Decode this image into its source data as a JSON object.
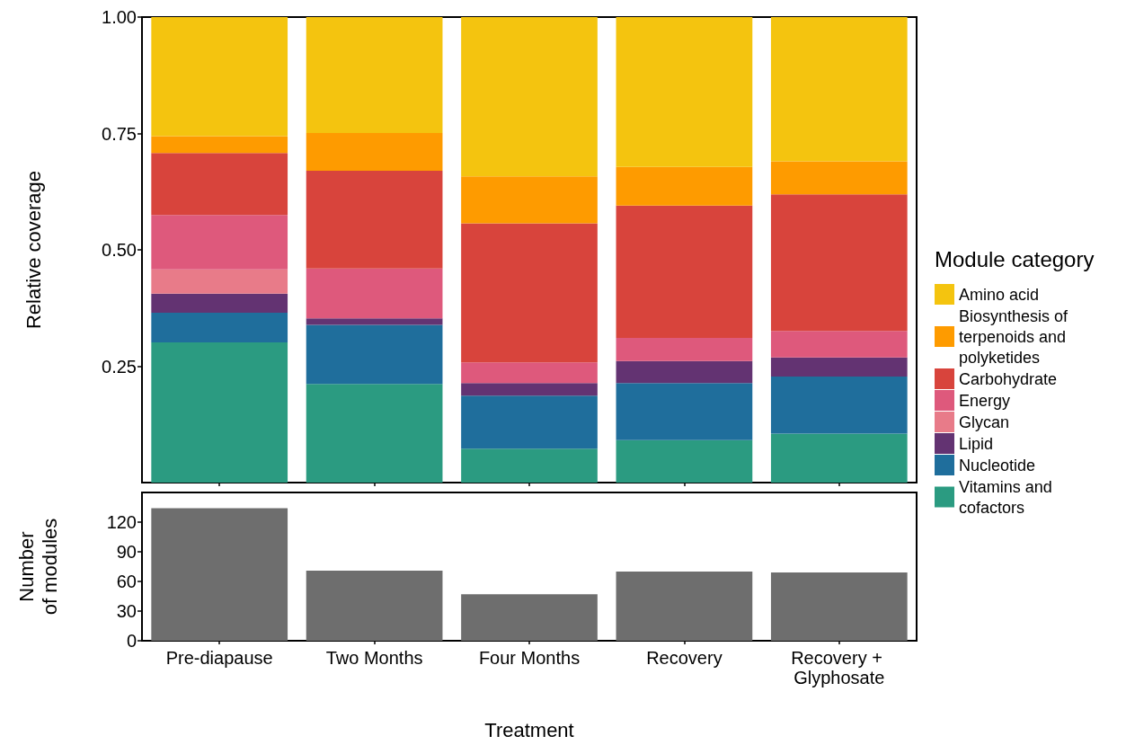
{
  "chart_data": [
    {
      "type": "bar",
      "stacked": true,
      "ylabel": "Relative coverage",
      "legend_title": "Module category",
      "legend": "right",
      "tick_labels": "y",
      "categories": [
        "Pre-diapause",
        "Two Months",
        "Four Months",
        "Recovery",
        "Recovery + Glyphosate"
      ],
      "ylim": [
        0,
        1
      ],
      "yticks": [
        {
          "value": 0.25,
          "label": "0.25"
        },
        {
          "value": 0.5,
          "label": "0.50"
        },
        {
          "value": 0.75,
          "label": "0.75"
        },
        {
          "value": 1,
          "label": "1.00"
        }
      ],
      "series": [
        {
          "name": "Vitamins and cofactors",
          "color": "#2b9b81",
          "values": [
            0.301,
            0.212,
            0.073,
            0.091,
            0.105
          ]
        },
        {
          "name": "Nucleotide",
          "color": "#1f6e9c",
          "values": [
            0.064,
            0.127,
            0.114,
            0.123,
            0.123
          ]
        },
        {
          "name": "Lipid",
          "color": "#633372",
          "values": [
            0.041,
            0.014,
            0.027,
            0.047,
            0.041
          ]
        },
        {
          "name": "Glycan",
          "color": "#e87b89",
          "values": [
            0.052,
            null,
            null,
            null,
            null
          ]
        },
        {
          "name": "Energy",
          "color": "#de597c",
          "values": [
            0.117,
            0.107,
            0.044,
            0.05,
            0.057
          ]
        },
        {
          "name": "Carbohydrate",
          "color": "#d8443c",
          "values": [
            0.133,
            0.21,
            0.299,
            0.284,
            0.293
          ]
        },
        {
          "name": "Biosynthesis of terpenoids and polyketides",
          "color": "#fe9b00",
          "values": [
            0.036,
            0.081,
            0.101,
            0.083,
            0.071
          ]
        },
        {
          "name": "Amino acid",
          "color": "#f4c40f",
          "values": [
            0.256,
            0.249,
            0.342,
            0.322,
            0.31
          ]
        }
      ]
    },
    {
      "type": "bar",
      "ylabel": "Number\nof modules",
      "xlabel": "Treatment",
      "categories": [
        "Pre-diapause",
        "Two Months",
        "Four Months",
        "Recovery",
        "Recovery + Glyphosate"
      ],
      "ylim": [
        0,
        150
      ],
      "yticks": [
        0,
        30,
        60,
        90,
        120
      ],
      "color": "#6e6e6e",
      "values": [
        134,
        71,
        47,
        70,
        69
      ]
    }
  ]
}
